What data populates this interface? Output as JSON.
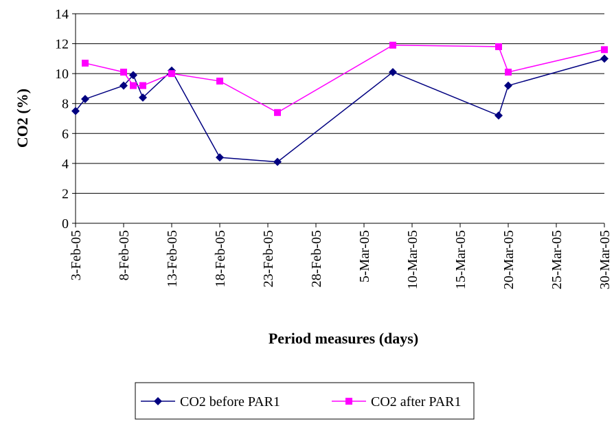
{
  "chart_data": {
    "type": "line",
    "x_label": "Period measures (days)",
    "y_label": "CO2 (%)",
    "xlim": [
      "3-Feb-05",
      "30-Mar-05"
    ],
    "xticks": [
      "3-Feb-05",
      "8-Feb-05",
      "13-Feb-05",
      "18-Feb-05",
      "23-Feb-05",
      "28-Feb-05",
      "5-Mar-05",
      "10-Mar-05",
      "15-Mar-05",
      "20-Mar-05",
      "25-Mar-05",
      "30-Mar-05"
    ],
    "ylim": [
      0,
      14
    ],
    "yticks": [
      0,
      2,
      4,
      6,
      8,
      10,
      12,
      14
    ],
    "grid": true,
    "legend": "bottom",
    "series": [
      {
        "name": "CO2 before PAR1",
        "color": "#000080",
        "marker": "diamond",
        "x": [
          "3-Feb-05",
          "4-Feb-05",
          "8-Feb-05",
          "9-Feb-05",
          "10-Feb-05",
          "13-Feb-05",
          "18-Feb-05",
          "24-Feb-05",
          "8-Mar-05",
          "19-Mar-05",
          "20-Mar-05",
          "30-Mar-05"
        ],
        "values": [
          7.5,
          8.3,
          9.2,
          9.9,
          8.4,
          10.2,
          4.4,
          4.1,
          10.1,
          7.2,
          9.2,
          11.0
        ]
      },
      {
        "name": "CO2 after PAR1",
        "color": "#ff00ff",
        "marker": "square",
        "x": [
          "4-Feb-05",
          "8-Feb-05",
          "9-Feb-05",
          "10-Feb-05",
          "13-Feb-05",
          "18-Feb-05",
          "24-Feb-05",
          "8-Mar-05",
          "19-Mar-05",
          "20-Mar-05",
          "30-Mar-05"
        ],
        "values": [
          10.7,
          10.1,
          9.2,
          9.2,
          10.0,
          9.5,
          7.4,
          11.9,
          11.8,
          10.1,
          11.6
        ]
      }
    ]
  }
}
